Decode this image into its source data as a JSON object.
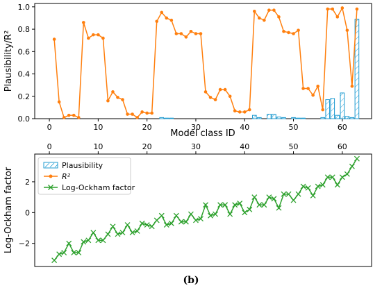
{
  "caption": "(b)",
  "colors": {
    "plausibility": "#1f9bd1",
    "r2": "#ff7f0e",
    "ockham": "#2ca02c"
  },
  "chart_data": [
    {
      "type": "bar+line",
      "xlabel": "Model class ID",
      "ylabel": "Plausibility/R²",
      "xlim": [
        -3,
        66
      ],
      "ylim": [
        0,
        1.03
      ],
      "xticks": [
        "0",
        "10",
        "20",
        "30",
        "40",
        "50",
        "60"
      ],
      "yticks": [
        "0.0",
        "0.2",
        "0.4",
        "0.6",
        "0.8",
        "1.0"
      ],
      "series": [
        {
          "name": "R²",
          "kind": "line",
          "x": [
            1,
            2,
            3,
            4,
            5,
            6,
            7,
            8,
            9,
            10,
            11,
            12,
            13,
            14,
            15,
            16,
            17,
            18,
            19,
            20,
            21,
            22,
            23,
            24,
            25,
            26,
            27,
            28,
            29,
            30,
            31,
            32,
            33,
            34,
            35,
            36,
            37,
            38,
            39,
            40,
            41,
            42,
            43,
            44,
            45,
            46,
            47,
            48,
            49,
            50,
            51,
            52,
            53,
            54,
            55,
            56,
            57,
            58,
            59,
            60,
            61,
            62,
            63
          ],
          "values": [
            0.71,
            0.15,
            0.01,
            0.03,
            0.03,
            0.01,
            0.86,
            0.72,
            0.75,
            0.75,
            0.72,
            0.16,
            0.24,
            0.19,
            0.17,
            0.04,
            0.04,
            0.01,
            0.06,
            0.05,
            0.05,
            0.87,
            0.95,
            0.9,
            0.88,
            0.76,
            0.76,
            0.73,
            0.78,
            0.76,
            0.76,
            0.24,
            0.19,
            0.17,
            0.26,
            0.26,
            0.2,
            0.07,
            0.06,
            0.06,
            0.08,
            0.96,
            0.9,
            0.88,
            0.97,
            0.97,
            0.91,
            0.78,
            0.77,
            0.76,
            0.79,
            0.27,
            0.27,
            0.21,
            0.29,
            0.08,
            0.98,
            0.98,
            0.91,
            0.99,
            0.79,
            0.29,
            0.98
          ]
        },
        {
          "name": "Plausibility",
          "kind": "bar",
          "x": [
            23,
            24,
            25,
            42,
            43,
            45,
            46,
            47,
            48,
            50,
            51,
            52,
            56,
            57,
            58,
            59,
            60,
            61,
            62,
            63
          ],
          "values": [
            0.01,
            0.005,
            0.005,
            0.03,
            0.01,
            0.04,
            0.04,
            0.015,
            0.01,
            0.01,
            0.005,
            0.005,
            0.01,
            0.17,
            0.18,
            0.03,
            0.23,
            0.02,
            0.01,
            0.89
          ]
        }
      ]
    },
    {
      "type": "line",
      "xlabel": "",
      "ylabel": "Log-Ockham factor",
      "xlim": [
        -3,
        66
      ],
      "ylim": [
        -3.5,
        3.8
      ],
      "xticks": [
        "0",
        "10",
        "20",
        "30",
        "40",
        "50",
        "60"
      ],
      "yticks": [
        "−2",
        "0",
        "2"
      ],
      "legend": {
        "position": "top-left",
        "entries": [
          "Plausibility",
          "R²",
          "Log-Ockham factor"
        ]
      },
      "series": [
        {
          "name": "Log-Ockham factor",
          "x": [
            1,
            2,
            3,
            4,
            5,
            6,
            7,
            8,
            9,
            10,
            11,
            12,
            13,
            14,
            15,
            16,
            17,
            18,
            19,
            20,
            21,
            22,
            23,
            24,
            25,
            26,
            27,
            28,
            29,
            30,
            31,
            32,
            33,
            34,
            35,
            36,
            37,
            38,
            39,
            40,
            41,
            42,
            43,
            44,
            45,
            46,
            47,
            48,
            49,
            50,
            51,
            52,
            53,
            54,
            55,
            56,
            57,
            58,
            59,
            60,
            61,
            62,
            63
          ],
          "values": [
            -3.1,
            -2.7,
            -2.6,
            -2.0,
            -2.6,
            -2.6,
            -1.9,
            -1.8,
            -1.3,
            -1.8,
            -1.8,
            -1.4,
            -0.9,
            -1.4,
            -1.3,
            -0.8,
            -1.3,
            -1.2,
            -0.7,
            -0.8,
            -0.9,
            -0.5,
            -0.2,
            -0.8,
            -0.7,
            -0.2,
            -0.6,
            -0.6,
            -0.1,
            -0.5,
            -0.4,
            0.5,
            -0.2,
            -0.1,
            0.5,
            0.5,
            -0.1,
            0.5,
            0.6,
            0.0,
            0.2,
            1.0,
            0.5,
            0.5,
            1.0,
            0.9,
            0.3,
            1.2,
            1.2,
            0.8,
            1.2,
            1.7,
            1.6,
            1.1,
            1.7,
            1.8,
            2.3,
            2.3,
            1.8,
            2.3,
            2.5,
            3.0,
            3.5
          ]
        }
      ]
    }
  ]
}
